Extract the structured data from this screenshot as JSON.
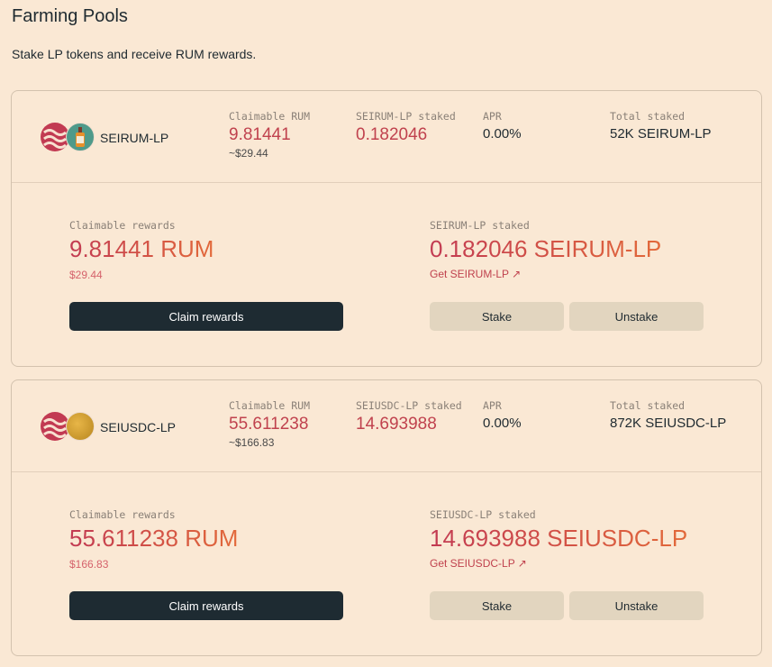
{
  "page": {
    "title": "Farming Pools",
    "subtitle": "Stake LP tokens and receive RUM rewards."
  },
  "colors": {
    "background": "#fae8d4",
    "accent": "#c0424e",
    "accent_gradient_end": "#e2693a",
    "button_dark": "#1e2b32",
    "button_light": "#e2d5bf"
  },
  "pools": [
    {
      "name": "SEIRUM-LP",
      "icons": [
        "sei-icon",
        "rum-bottle-icon"
      ],
      "claimable_label": "Claimable RUM",
      "claimable": "9.81441",
      "claimable_usd": "~$29.44",
      "staked_label": "SEIRUM-LP staked",
      "staked": "0.182046",
      "apr_label": "APR",
      "apr": "0.00%",
      "total_label": "Total staked",
      "total": "52K SEIRUM-LP",
      "rewards_label": "Claimable rewards",
      "rewards": "9.81441 RUM",
      "rewards_usd": "$29.44",
      "staked_big": "0.182046 SEIRUM-LP",
      "get_link": "Get SEIRUM-LP ↗",
      "claim_btn": "Claim rewards",
      "stake_btn": "Stake",
      "unstake_btn": "Unstake"
    },
    {
      "name": "SEIUSDC-LP",
      "icons": [
        "sei-icon",
        "usdc-coin-icon"
      ],
      "claimable_label": "Claimable RUM",
      "claimable": "55.611238",
      "claimable_usd": "~$166.83",
      "staked_label": "SEIUSDC-LP staked",
      "staked": "14.693988",
      "apr_label": "APR",
      "apr": "0.00%",
      "total_label": "Total staked",
      "total": "872K SEIUSDC-LP",
      "rewards_label": "Claimable rewards",
      "rewards": "55.611238 RUM",
      "rewards_usd": "$166.83",
      "staked_big": "14.693988 SEIUSDC-LP",
      "get_link": "Get SEIUSDC-LP ↗",
      "claim_btn": "Claim rewards",
      "stake_btn": "Stake",
      "unstake_btn": "Unstake"
    }
  ]
}
